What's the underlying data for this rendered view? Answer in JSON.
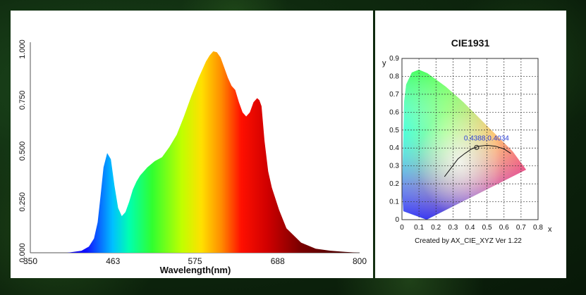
{
  "chart_data": [
    {
      "type": "area",
      "title": "",
      "xlabel": "Wavelength(nm)",
      "ylabel": "",
      "xlim": [
        350,
        800
      ],
      "ylim": [
        0,
        1.0
      ],
      "x_ticks": [
        "350",
        "463",
        "575",
        "688",
        "800"
      ],
      "y_ticks": [
        "0.000",
        "0.250",
        "0.500",
        "0.750",
        "1.000"
      ],
      "fill": "spectral-gradient",
      "series": [
        {
          "x": [
            400,
            410,
            420,
            430,
            437,
            442,
            446,
            450,
            455,
            460,
            465,
            470,
            475,
            480,
            485,
            490,
            495,
            500,
            510,
            520,
            530,
            540,
            550,
            560,
            570,
            580,
            590,
            595,
            600,
            605,
            610,
            615,
            620,
            625,
            630,
            635,
            640,
            645,
            650,
            655,
            660,
            663,
            666,
            670,
            675,
            680,
            690,
            700,
            720,
            740,
            760,
            780,
            800
          ],
          "values": [
            0,
            0.005,
            0.01,
            0.03,
            0.07,
            0.15,
            0.28,
            0.42,
            0.49,
            0.46,
            0.33,
            0.22,
            0.18,
            0.2,
            0.25,
            0.31,
            0.35,
            0.38,
            0.42,
            0.45,
            0.47,
            0.52,
            0.58,
            0.67,
            0.77,
            0.86,
            0.94,
            0.97,
            0.99,
            0.985,
            0.96,
            0.91,
            0.86,
            0.82,
            0.8,
            0.74,
            0.69,
            0.67,
            0.69,
            0.74,
            0.76,
            0.75,
            0.72,
            0.55,
            0.4,
            0.32,
            0.21,
            0.12,
            0.05,
            0.02,
            0.01,
            0.004,
            0
          ]
        }
      ]
    },
    {
      "type": "scatter",
      "title": "CIE1931",
      "xlabel": "x",
      "ylabel": "y",
      "xlim": [
        0,
        0.8
      ],
      "ylim": [
        0,
        0.9
      ],
      "x_ticks": [
        "0",
        "0.1",
        "0.2",
        "0.3",
        "0.4",
        "0.5",
        "0.6",
        "0.7",
        "0.8"
      ],
      "y_ticks": [
        "0",
        "0.1",
        "0.2",
        "0.3",
        "0.4",
        "0.5",
        "0.6",
        "0.7",
        "0.8",
        "0.9"
      ],
      "grid": true,
      "point": {
        "x": 0.4388,
        "y": 0.4034,
        "label": "0.4388,0.4034"
      },
      "planckian_locus": [
        [
          0.25,
          0.24
        ],
        [
          0.29,
          0.29
        ],
        [
          0.33,
          0.34
        ],
        [
          0.37,
          0.37
        ],
        [
          0.41,
          0.395
        ],
        [
          0.45,
          0.41
        ],
        [
          0.5,
          0.415
        ],
        [
          0.55,
          0.41
        ],
        [
          0.6,
          0.395
        ],
        [
          0.64,
          0.37
        ]
      ],
      "footer": "Created by AX_CIE_XYZ Ver 1.22",
      "label_color": "#2b3fd6"
    }
  ]
}
